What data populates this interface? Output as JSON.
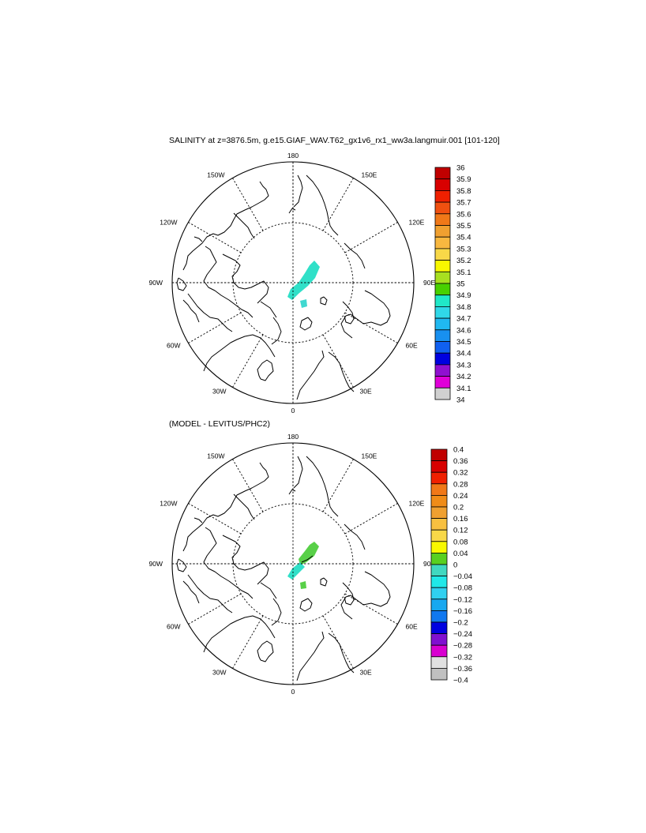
{
  "title": "SALINITY at z=3876.5m, g.e15.GIAF_WAV.T62_gx1v6_rx1_ww3a.langmuir.001 [101-120]",
  "subtitle": "(MODEL - LEVITUS/PHC2)",
  "longitude_labels": [
    "180",
    "150E",
    "120E",
    "90E",
    "60E",
    "30E",
    "0",
    "30W",
    "60W",
    "90W",
    "120W",
    "150W"
  ],
  "panels": [
    {
      "name": "salinity",
      "colorbar": {
        "labels": [
          "36",
          "35.9",
          "35.8",
          "35.7",
          "35.6",
          "35.5",
          "35.4",
          "35.3",
          "35.2",
          "35.1",
          "35",
          "34.9",
          "34.8",
          "34.7",
          "34.6",
          "34.5",
          "34.4",
          "34.3",
          "34.2",
          "34.1",
          "34"
        ],
        "colors": [
          "#C00000",
          "#D80000",
          "#F02000",
          "#F05010",
          "#F07818",
          "#F0A030",
          "#F8B840",
          "#F8D848",
          "#F8F800",
          "#A8E020",
          "#48D000",
          "#20E8C8",
          "#30D8E8",
          "#20B8F0",
          "#1890F0",
          "#1060F0",
          "#0000E0",
          "#9010D0",
          "#E000D8",
          "#D0D0D0",
          "#707070"
        ]
      },
      "shading": [
        {
          "id": "patch-lomonosov",
          "color": "#30E0C8",
          "points": [
            [
              398,
              330
            ],
            [
              405,
              338
            ],
            [
              399,
              352
            ],
            [
              390,
              362
            ],
            [
              378,
              372
            ],
            [
              370,
              380
            ],
            [
              364,
              376
            ],
            [
              368,
              366
            ],
            [
              378,
              358
            ],
            [
              386,
              346
            ],
            [
              392,
              336
            ]
          ]
        },
        {
          "id": "patch-small",
          "color": "#40D8D0",
          "points": [
            [
              380,
              381
            ],
            [
              388,
              379
            ],
            [
              389,
              388
            ],
            [
              382,
              390
            ]
          ]
        }
      ],
      "accent_contours": []
    },
    {
      "name": "difference",
      "colorbar": {
        "labels": [
          "0.4",
          "0.36",
          "0.32",
          "0.28",
          "0.24",
          "0.2",
          "0.16",
          "0.12",
          "0.08",
          "0.04",
          "0",
          "−0.04",
          "−0.08",
          "−0.12",
          "−0.16",
          "−0.2",
          "−0.24",
          "−0.28",
          "−0.32",
          "−0.36",
          "−0.4"
        ],
        "colors": [
          "#C00000",
          "#D80000",
          "#F02000",
          "#F07818",
          "#F08C18",
          "#F0A030",
          "#F8C040",
          "#F8D848",
          "#F8F800",
          "#58D020",
          "#40D8C0",
          "#20E8E8",
          "#30D0F0",
          "#18A8F0",
          "#1078F0",
          "#0000E0",
          "#8010D0",
          "#D800D0",
          "#E0E0E0",
          "#C0C0C0",
          "#707070"
        ]
      },
      "shading": [
        {
          "id": "patch-green",
          "color": "#58D048",
          "points": [
            [
              398,
              686
            ],
            [
              404,
              692
            ],
            [
              398,
              704
            ],
            [
              388,
              712
            ],
            [
              380,
              716
            ],
            [
              378,
              708
            ],
            [
              386,
              698
            ],
            [
              392,
              690
            ]
          ]
        },
        {
          "id": "patch-cyan",
          "color": "#30E0C8",
          "points": [
            [
              380,
              712
            ],
            [
              386,
              718
            ],
            [
              378,
              726
            ],
            [
              370,
              734
            ],
            [
              364,
              730
            ],
            [
              370,
              720
            ]
          ]
        },
        {
          "id": "patch-small",
          "color": "#58D048",
          "points": [
            [
              380,
              738
            ],
            [
              387,
              736
            ],
            [
              388,
              745
            ],
            [
              381,
              746
            ]
          ]
        }
      ],
      "accent_contours": [
        {
          "id": "zero-line",
          "points": [
            [
              382,
              712
            ],
            [
              389,
              709
            ],
            [
              396,
              704
            ]
          ]
        }
      ]
    }
  ]
}
